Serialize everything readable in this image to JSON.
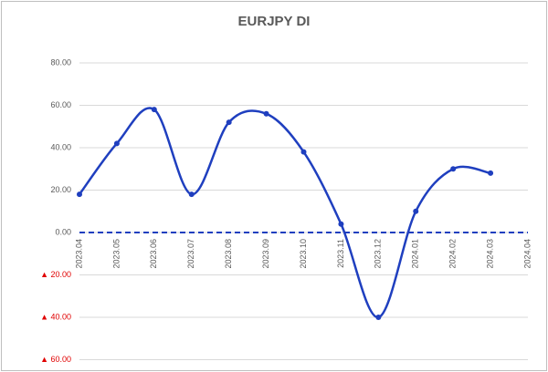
{
  "chart_data": {
    "type": "line",
    "title": "EURJPY DI",
    "categories": [
      "2023.04",
      "2023.05",
      "2023.06",
      "2023.07",
      "2023.08",
      "2023.09",
      "2023.10",
      "2023.11",
      "2023.12",
      "2024.01",
      "2024.02",
      "2024.03",
      "2024.04"
    ],
    "series": [
      {
        "name": "EURJPY DI",
        "color": "#1f3fbf",
        "values": [
          18,
          42,
          58,
          18,
          52,
          56,
          38,
          4,
          -40,
          10,
          30,
          28,
          null
        ]
      }
    ],
    "ylim": [
      -60,
      80
    ],
    "yticks": [
      {
        "value": -60,
        "label": "▲ 60.00"
      },
      {
        "value": -40,
        "label": "▲ 40.00"
      },
      {
        "value": -20,
        "label": "▲ 20.00"
      },
      {
        "value": 0,
        "label": "0.00"
      },
      {
        "value": 20,
        "label": "20.00"
      },
      {
        "value": 40,
        "label": "40.00"
      },
      {
        "value": 60,
        "label": "60.00"
      },
      {
        "value": 80,
        "label": "80.00"
      }
    ],
    "negative_label_color": "#e00000",
    "grid": true,
    "smooth": true
  }
}
